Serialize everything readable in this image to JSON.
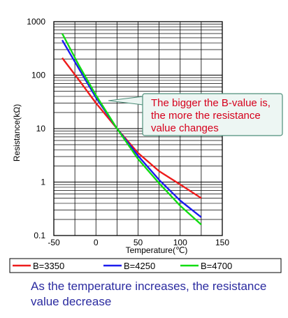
{
  "chart_data": {
    "type": "line",
    "title": "",
    "xlabel": "Temperature(℃)",
    "ylabel": "Resistance(kΩ)",
    "xlim": [
      -50,
      150
    ],
    "ylim": [
      0.1,
      1000
    ],
    "y_scale": "log",
    "x_ticks": [
      -50,
      0,
      50,
      100,
      150
    ],
    "y_ticks": [
      {
        "value": 0.1,
        "label": "0.1"
      },
      {
        "value": 1,
        "label": "1"
      },
      {
        "value": 10,
        "label": "10"
      },
      {
        "value": 100,
        "label": "100"
      },
      {
        "value": 1000,
        "label": "1000"
      }
    ],
    "grid": true,
    "legend_position": "bottom",
    "series": [
      {
        "name": "B=3350",
        "color": "#ee1c1c",
        "x": [
          -40,
          -20,
          0,
          25,
          50,
          75,
          100,
          125
        ],
        "y": [
          210,
          80,
          30,
          10,
          3.5,
          1.6,
          0.9,
          0.5
        ]
      },
      {
        "name": "B=4250",
        "color": "#1c1cee",
        "x": [
          -40,
          -20,
          0,
          25,
          50,
          75,
          100,
          125
        ],
        "y": [
          450,
          130,
          38,
          10,
          3.1,
          1.1,
          0.45,
          0.22
        ]
      },
      {
        "name": "B=4700",
        "color": "#11dd11",
        "x": [
          -40,
          -20,
          0,
          25,
          50,
          75,
          100,
          125
        ],
        "y": [
          600,
          150,
          42,
          10,
          2.7,
          0.95,
          0.36,
          0.16
        ]
      }
    ],
    "annotation": {
      "lines": [
        "The bigger the B-value is,",
        "the more the resistance",
        "value changes"
      ],
      "color": "#d6001c"
    }
  },
  "caption": {
    "text": "As the temperature increases, the resistance value decrease",
    "color": "#2b2ba0"
  }
}
